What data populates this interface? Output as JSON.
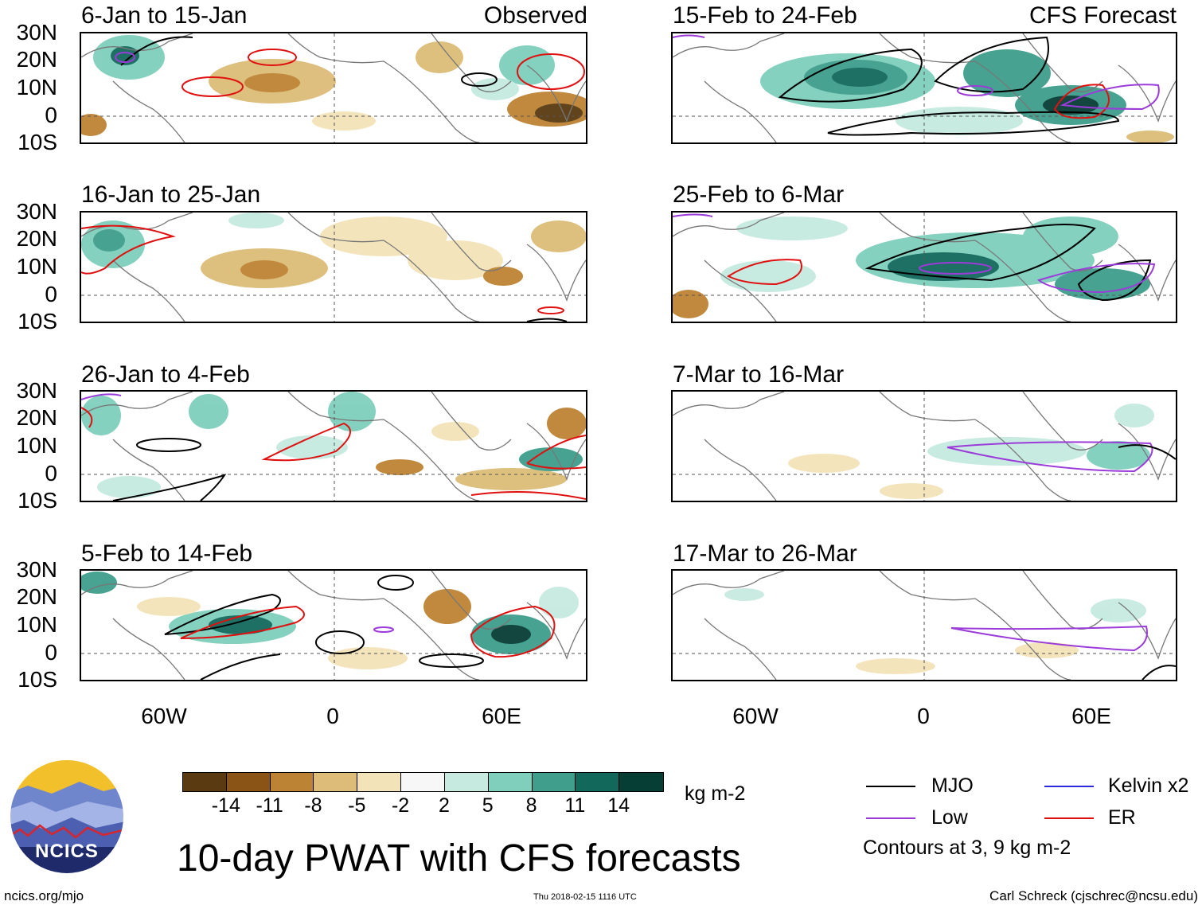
{
  "panels": [
    {
      "title": "6-Jan to 15-Jan",
      "tag": "Observed"
    },
    {
      "title": "16-Jan to 25-Jan",
      "tag": ""
    },
    {
      "title": "26-Jan to 4-Feb",
      "tag": ""
    },
    {
      "title": "5-Feb to 14-Feb",
      "tag": ""
    },
    {
      "title": "15-Feb to 24-Feb",
      "tag": "CFS Forecast"
    },
    {
      "title": "25-Feb to 6-Mar",
      "tag": ""
    },
    {
      "title": "7-Mar to 16-Mar",
      "tag": ""
    },
    {
      "title": "17-Mar to 26-Mar",
      "tag": ""
    }
  ],
  "lat_labels": [
    "30N",
    "20N",
    "10N",
    "0",
    "10S"
  ],
  "lon_labels": [
    "60W",
    "0",
    "60E"
  ],
  "colorbar": {
    "colors": [
      "#5a3a10",
      "#8a5417",
      "#bd8334",
      "#dcbc78",
      "#f3e3b8",
      "#f7f7f7",
      "#c6eae0",
      "#7fcfbc",
      "#3f9e8c",
      "#13685c",
      "#063d35"
    ],
    "ticks": [
      "-14",
      "-11",
      "-8",
      "-5",
      "-2",
      "2",
      "5",
      "8",
      "11",
      "14"
    ],
    "unit": "kg m-2"
  },
  "title": "10-day PWAT with CFS forecasts",
  "legend": {
    "items": [
      {
        "label": "MJO",
        "color": "#000000"
      },
      {
        "label": "Kelvin x2",
        "color": "#2b2bdb"
      },
      {
        "label": "Low",
        "color": "#9b3bd9"
      },
      {
        "label": "ER",
        "color": "#e01010"
      }
    ],
    "note": "Contours at 3, 9 kg m-2"
  },
  "logo": {
    "text": "NCICS"
  },
  "footer": {
    "url": "ncics.org/mjo",
    "timestamp": "Thu 2018-02-15 1116 UTC",
    "credit": "Carl Schreck (cjschrec@ncsu.edu)"
  }
}
